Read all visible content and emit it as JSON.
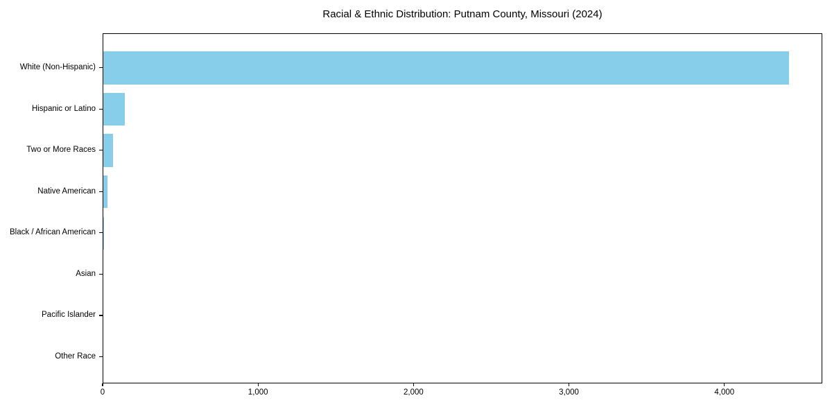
{
  "title": "Racial & Ethnic Distribution: Putnam County, Missouri (2024)",
  "chart_data": {
    "type": "bar",
    "orientation": "horizontal",
    "title": "Racial & Ethnic Distribution: Putnam County, Missouri (2024)",
    "xlabel": "",
    "ylabel": "",
    "categories": [
      "White (Non-Hispanic)",
      "Hispanic or Latino",
      "Two or More Races",
      "Native American",
      "Black / African American",
      "Asian",
      "Pacific Islander",
      "Other Race"
    ],
    "values": [
      4410,
      140,
      62,
      28,
      5,
      0,
      0,
      0
    ],
    "xlim": [
      0,
      4630
    ],
    "x_ticks": [
      0,
      1000,
      2000,
      3000,
      4000
    ],
    "x_tick_labels": [
      "0",
      "1,000",
      "2,000",
      "3,000",
      "4,000"
    ],
    "bar_color": "#87CEEB",
    "grid": false,
    "legend": false,
    "frame_color": "#000000",
    "background_color": "#ffffff"
  }
}
